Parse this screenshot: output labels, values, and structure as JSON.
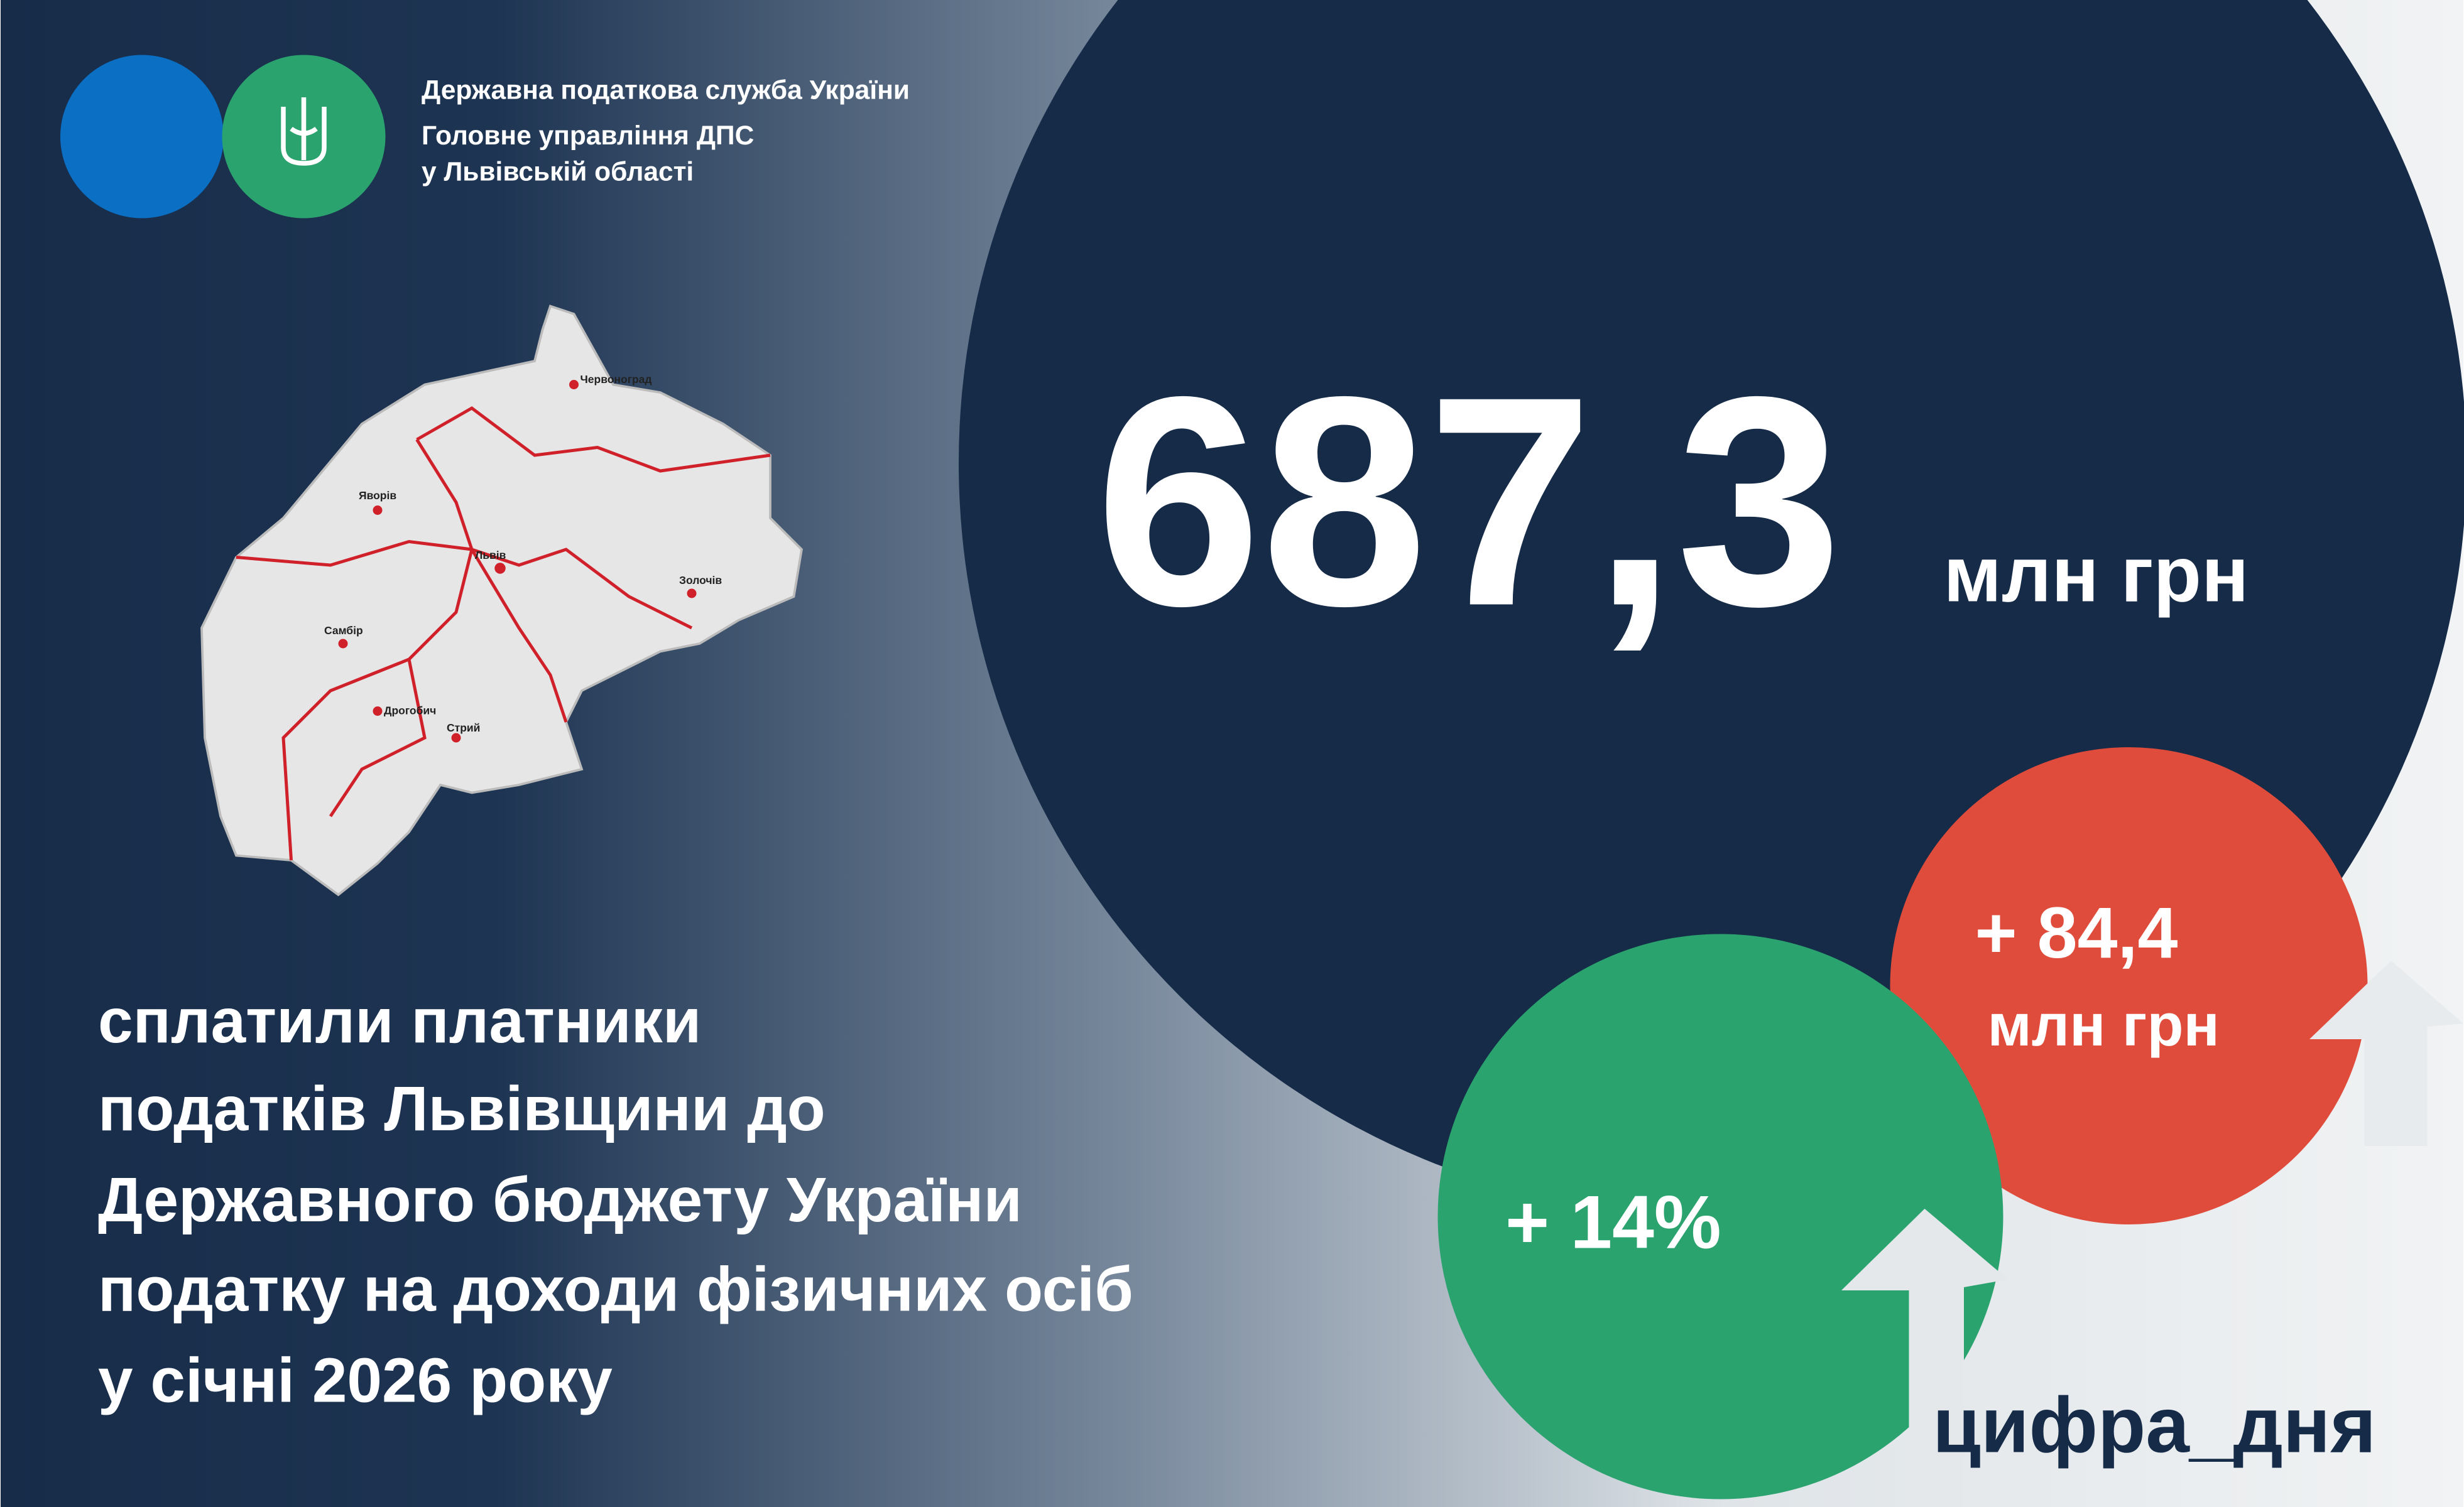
{
  "header": {
    "organization": "Державна податкова служба України",
    "department_lines": [
      "Головне управління ДПС",
      "у Львівській області"
    ]
  },
  "map": {
    "cities": [
      "Червоноград",
      "Яворів",
      "Львів",
      "Золочів",
      "Самбір",
      "Дрогобич",
      "Стрий"
    ]
  },
  "headline": {
    "value": "687,3",
    "unit": "млн грн"
  },
  "description": [
    "сплатили платники",
    "податків Львівщини до",
    "Державного бюджету України",
    "податку на доходи фізичних осіб",
    "у січні 2026 року"
  ],
  "growth_absolute": {
    "value": "+ 84,4",
    "unit": "млн грн"
  },
  "growth_percent": "+ 14%",
  "hashtag": "цифра_дня"
}
